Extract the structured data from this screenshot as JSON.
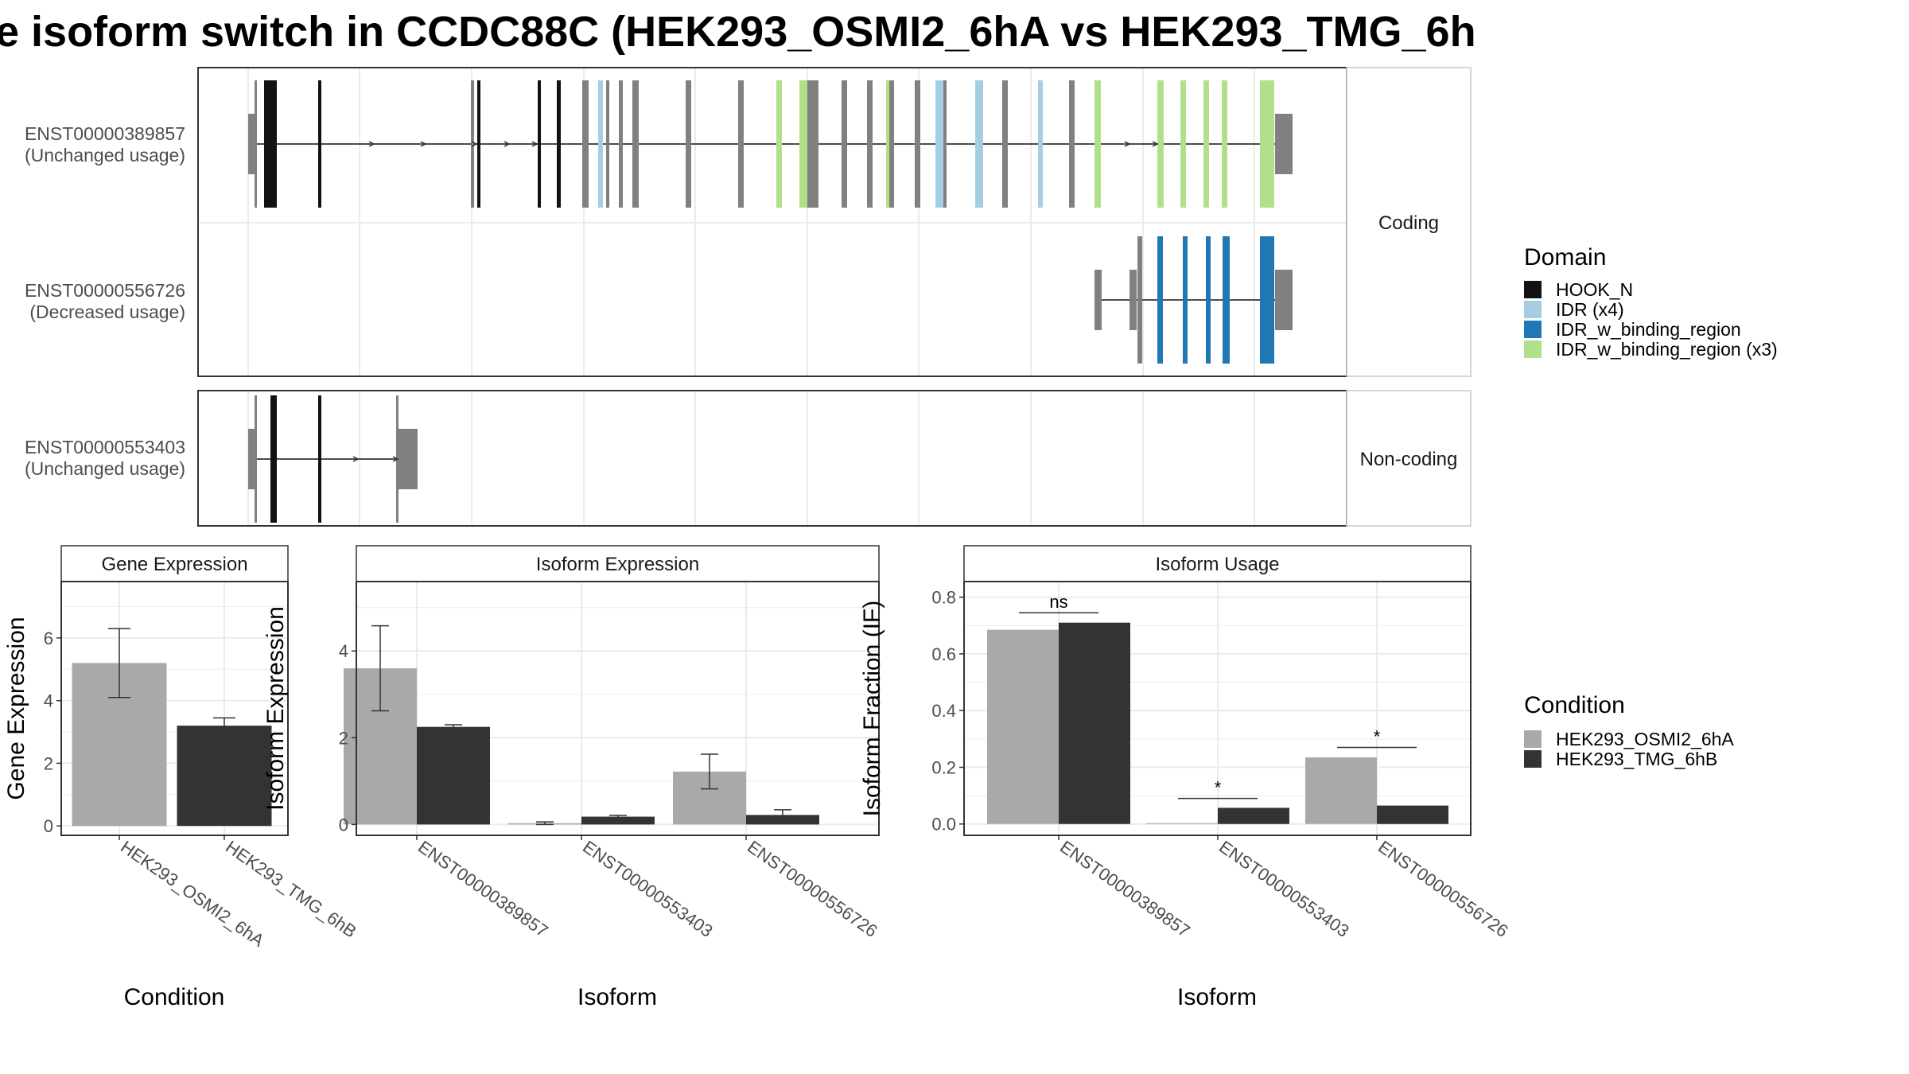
{
  "title": "e isoform switch in CCDC88C (HEK293_OSMI2_6hA vs HEK293_TMG_6h",
  "colors": {
    "HOOK_N": "#121212",
    "IDR_x4": "#a6cee3",
    "IDR_w_binding_region": "#1f78b4",
    "IDR_w_binding_region_x3": "#b2df8a",
    "exon": "#808080",
    "condA": "#a9a9a9",
    "condB": "#333333",
    "grid": "#ebebeb"
  },
  "structure": {
    "coding_label": "Coding",
    "noncoding_label": "Non-coding",
    "isoforms": [
      {
        "id": "ENST00000389857",
        "usage": "(Unchanged usage)"
      },
      {
        "id": "ENST00000556726",
        "usage": "(Decreased usage)"
      },
      {
        "id": "ENST00000553403",
        "usage": "(Unchanged usage)"
      }
    ]
  },
  "legend_domain": {
    "title": "Domain",
    "items": [
      {
        "label": "HOOK_N",
        "color": "#121212"
      },
      {
        "label": "IDR (x4)",
        "color": "#a6cee3"
      },
      {
        "label": "IDR_w_binding_region",
        "color": "#1f78b4"
      },
      {
        "label": "IDR_w_binding_region (x3)",
        "color": "#b2df8a"
      }
    ]
  },
  "legend_condition": {
    "title": "Condition",
    "items": [
      {
        "label": "HEK293_OSMI2_6hA",
        "color": "#a9a9a9"
      },
      {
        "label": "HEK293_TMG_6hB",
        "color": "#333333"
      }
    ]
  },
  "chart_data": [
    {
      "type": "bar",
      "title": "Gene Expression",
      "xlabel": "Condition",
      "ylabel": "Gene Expression",
      "categories": [
        "HEK293_OSMI2_6hA",
        "HEK293_TMG_6hB"
      ],
      "values": [
        5.2,
        3.2
      ],
      "errors": [
        [
          4.1,
          6.3
        ],
        [
          2.95,
          3.45
        ]
      ],
      "yticks": [
        0,
        2,
        4,
        6
      ],
      "ylim": [
        -0.3,
        7.8
      ]
    },
    {
      "type": "bar",
      "title": "Isoform Expression",
      "xlabel": "Isoform",
      "ylabel": "Isoform Expression",
      "categories": [
        "ENST00000389857",
        "ENST00000553403",
        "ENST00000556726"
      ],
      "series": [
        {
          "name": "HEK293_OSMI2_6hA",
          "values": [
            3.6,
            0.03,
            1.22
          ],
          "errors": [
            [
              2.62,
              4.58
            ],
            [
              0.0,
              0.06
            ],
            [
              0.82,
              1.62
            ]
          ]
        },
        {
          "name": "HEK293_TMG_6hB",
          "values": [
            2.25,
            0.18,
            0.22
          ],
          "errors": [
            [
              2.2,
              2.3
            ],
            [
              0.15,
              0.21
            ],
            [
              0.1,
              0.34
            ]
          ]
        }
      ],
      "yticks": [
        0,
        2,
        4
      ],
      "ylim": [
        -0.25,
        5.6
      ]
    },
    {
      "type": "bar",
      "title": "Isoform Usage",
      "xlabel": "Isoform",
      "ylabel": "Isoform Fraction (IF)",
      "categories": [
        "ENST00000389857",
        "ENST00000553403",
        "ENST00000556726"
      ],
      "series": [
        {
          "name": "HEK293_OSMI2_6hA",
          "values": [
            0.685,
            0.003,
            0.235
          ]
        },
        {
          "name": "HEK293_TMG_6hB",
          "values": [
            0.71,
            0.057,
            0.065
          ]
        }
      ],
      "significance": [
        "ns",
        "*",
        "*"
      ],
      "sig_y": [
        0.745,
        0.09,
        0.27
      ],
      "yticks": [
        0.0,
        0.2,
        0.4,
        0.6,
        0.8
      ],
      "ylim": [
        -0.04,
        0.855
      ]
    }
  ]
}
